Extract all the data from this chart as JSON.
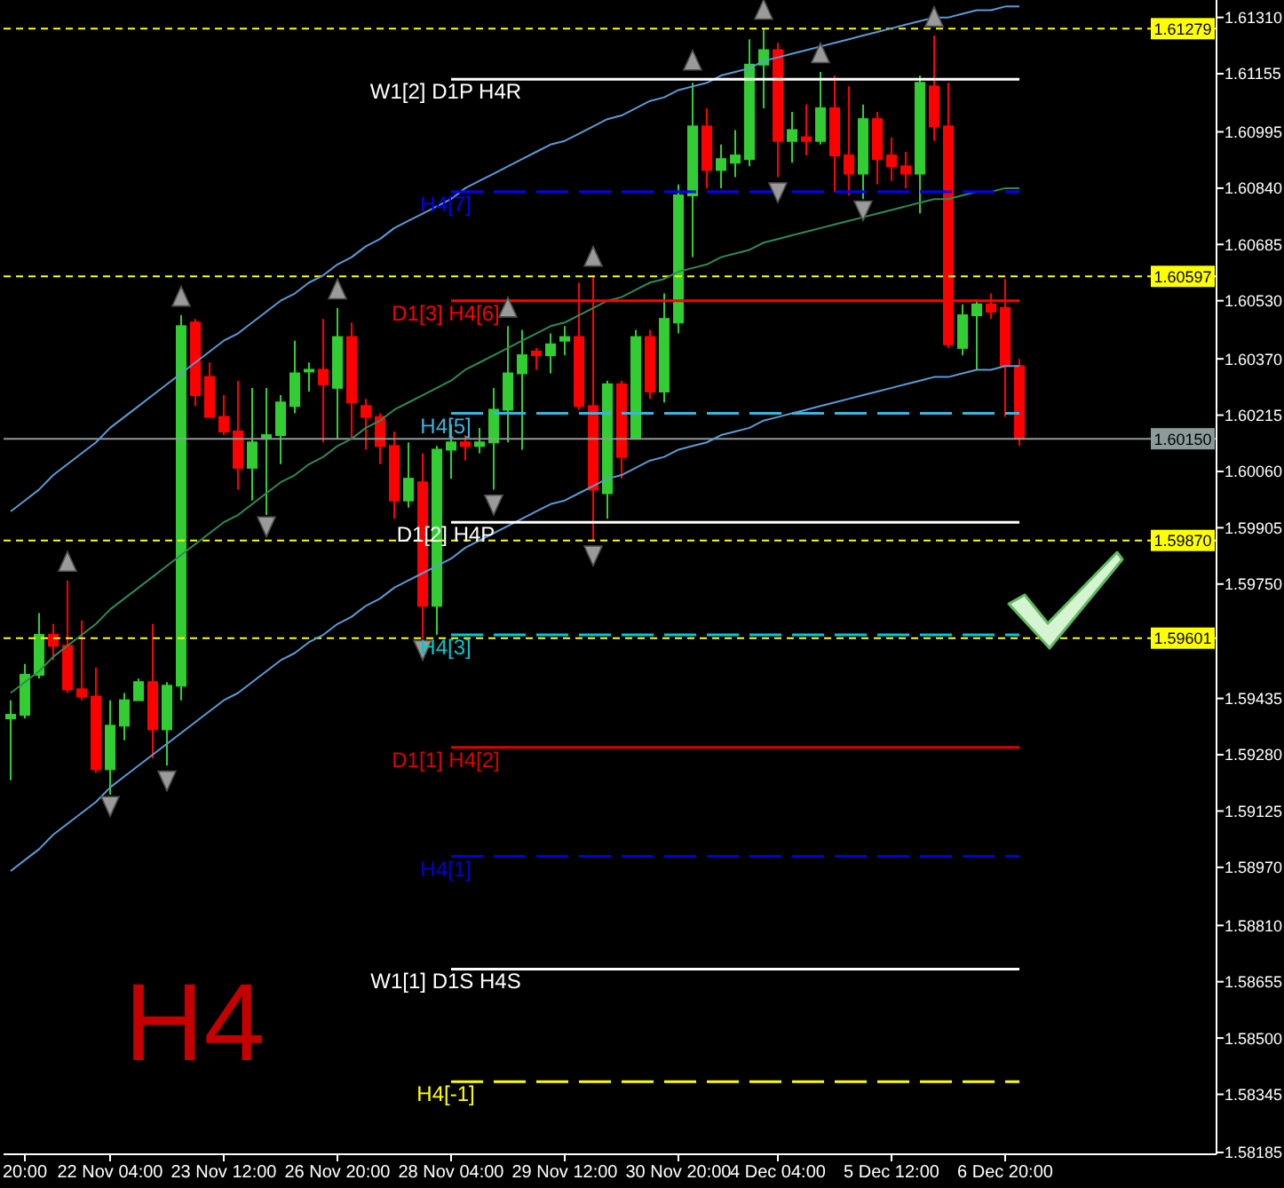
{
  "chart_data": {
    "type": "candlestick",
    "categories": [
      null,
      "20:00",
      null,
      null,
      null,
      null,
      null,
      "22 Nov 04:00",
      null,
      null,
      null,
      null,
      null,
      null,
      null,
      "23 Nov 12:00",
      null,
      null,
      null,
      null,
      null,
      null,
      null,
      "26 Nov 20:00",
      null,
      null,
      null,
      null,
      null,
      null,
      null,
      "28 Nov 04:00",
      null,
      null,
      null,
      null,
      null,
      null,
      null,
      "29 Nov 12:00",
      null,
      null,
      null,
      null,
      null,
      null,
      null,
      "30 Nov 20:00",
      null,
      null,
      null,
      null,
      null,
      null,
      "4 Dec 04:00",
      null,
      null,
      null,
      null,
      null,
      null,
      null,
      "5 Dec 12:00",
      null,
      null,
      null,
      null,
      null,
      null,
      null,
      "6 Dec 20:00",
      null
    ],
    "ohlc": [
      [
        1.5938,
        1.5943,
        1.5921,
        1.5939
      ],
      [
        1.5939,
        1.5953,
        1.5938,
        1.595
      ],
      [
        1.595,
        1.5967,
        1.5949,
        1.5961
      ],
      [
        1.5961,
        1.5964,
        1.5954,
        1.5958
      ],
      [
        1.5958,
        1.5976,
        1.5945,
        1.5946
      ],
      [
        1.5946,
        1.5965,
        1.5943,
        1.5944
      ],
      [
        1.5944,
        1.5952,
        1.5923,
        1.5924
      ],
      [
        1.5924,
        1.5943,
        1.5917,
        1.5936
      ],
      [
        1.5936,
        1.5945,
        1.5932,
        1.5943
      ],
      [
        1.5943,
        1.5949,
        1.5943,
        1.5948
      ],
      [
        1.5948,
        1.5964,
        1.5927,
        1.5935
      ],
      [
        1.5935,
        1.5948,
        1.5925,
        1.5947
      ],
      [
        1.5947,
        1.6049,
        1.5943,
        1.6046
      ],
      [
        1.6047,
        1.6048,
        1.6024,
        1.6027
      ],
      [
        1.6032,
        1.6036,
        1.6021,
        1.6021
      ],
      [
        1.6021,
        1.6027,
        1.6016,
        1.6017
      ],
      [
        1.6017,
        1.6031,
        1.6001,
        1.6007
      ],
      [
        1.6007,
        1.6029,
        1.5998,
        1.6014
      ],
      [
        1.6015,
        1.6029,
        1.5994,
        1.6016
      ],
      [
        1.6016,
        1.6027,
        1.6008,
        1.6025
      ],
      [
        1.6024,
        1.6042,
        1.6022,
        1.6033
      ],
      [
        1.6034,
        1.6036,
        1.6028,
        1.6034
      ],
      [
        1.6034,
        1.6048,
        1.6014,
        1.603
      ],
      [
        1.6029,
        1.6051,
        1.6015,
        1.6043
      ],
      [
        1.6043,
        1.6047,
        1.6015,
        1.6025
      ],
      [
        1.6024,
        1.6026,
        1.6012,
        1.6021
      ],
      [
        1.6021,
        1.6022,
        1.6008,
        1.6013
      ],
      [
        1.6013,
        1.6017,
        1.5993,
        1.5998
      ],
      [
        1.5998,
        1.6014,
        1.5996,
        1.6004
      ],
      [
        1.6003,
        1.6011,
        1.596,
        1.5969
      ],
      [
        1.5969,
        1.6013,
        1.5961,
        1.6012
      ],
      [
        1.6012,
        1.6019,
        1.6004,
        1.6014
      ],
      [
        1.6014,
        1.6016,
        1.6009,
        1.6013
      ],
      [
        1.6013,
        1.6018,
        1.6011,
        1.6014
      ],
      [
        1.6014,
        1.6029,
        1.6001,
        1.6023
      ],
      [
        1.6023,
        1.6046,
        1.6014,
        1.6033
      ],
      [
        1.6033,
        1.6045,
        1.6012,
        1.6038
      ],
      [
        1.6039,
        1.604,
        1.6034,
        1.6038
      ],
      [
        1.6038,
        1.6044,
        1.6033,
        1.6041
      ],
      [
        1.6042,
        1.6046,
        1.6038,
        1.6043
      ],
      [
        1.6043,
        1.6058,
        1.6023,
        1.6024
      ],
      [
        1.6024,
        1.606,
        1.5987,
        1.6001
      ],
      [
        1.6,
        1.6031,
        1.5993,
        1.603
      ],
      [
        1.603,
        1.6031,
        1.6004,
        1.601
      ],
      [
        1.6015,
        1.6045,
        1.6015,
        1.6043
      ],
      [
        1.6043,
        1.6045,
        1.6026,
        1.6028
      ],
      [
        1.6028,
        1.6055,
        1.6025,
        1.6048
      ],
      [
        1.6047,
        1.6085,
        1.6044,
        1.6082
      ],
      [
        1.6082,
        1.6113,
        1.6065,
        1.6101
      ],
      [
        1.6101,
        1.6106,
        1.6084,
        1.6089
      ],
      [
        1.6089,
        1.6096,
        1.6084,
        1.6092
      ],
      [
        1.6091,
        1.61,
        1.6087,
        1.6093
      ],
      [
        1.6092,
        1.6125,
        1.609,
        1.6118
      ],
      [
        1.6118,
        1.6128,
        1.6106,
        1.6122
      ],
      [
        1.6122,
        1.6124,
        1.6087,
        1.6097
      ],
      [
        1.6097,
        1.6105,
        1.6091,
        1.61
      ],
      [
        1.6098,
        1.6107,
        1.6093,
        1.6097
      ],
      [
        1.6097,
        1.6116,
        1.6096,
        1.6106
      ],
      [
        1.6106,
        1.6115,
        1.6083,
        1.6093
      ],
      [
        1.6093,
        1.6112,
        1.6082,
        1.6088
      ],
      [
        1.6088,
        1.6107,
        1.6081,
        1.6103
      ],
      [
        1.6103,
        1.6105,
        1.6085,
        1.6092
      ],
      [
        1.6093,
        1.6098,
        1.6086,
        1.609
      ],
      [
        1.609,
        1.6094,
        1.6084,
        1.6088
      ],
      [
        1.6088,
        1.6115,
        1.6077,
        1.6113
      ],
      [
        1.6112,
        1.6126,
        1.6097,
        1.6101
      ],
      [
        1.6101,
        1.6113,
        1.604,
        1.6041
      ],
      [
        1.604,
        1.6052,
        1.6038,
        1.6049
      ],
      [
        1.6049,
        1.6053,
        1.6034,
        1.6052
      ],
      [
        1.6052,
        1.6055,
        1.6048,
        1.605
      ],
      [
        1.6051,
        1.6059,
        1.6021,
        1.6035
      ],
      [
        1.6035,
        1.6037,
        1.6013,
        1.6015
      ]
    ],
    "colors": [
      "#32cd32",
      "#32cd32",
      "#32cd32",
      "#ff0000",
      "#ff0000",
      "#ff0000",
      "#ff0000",
      "#32cd32",
      "#32cd32",
      "#32cd32",
      "#ff0000",
      "#32cd32",
      "#32cd32",
      "#ff0000",
      "#ff0000",
      "#ff0000",
      "#ff0000",
      "#32cd32",
      "#32cd32",
      "#32cd32",
      "#32cd32",
      "#32cd32",
      "#ff0000",
      "#32cd32",
      "#ff0000",
      "#ff0000",
      "#ff0000",
      "#ff0000",
      "#32cd32",
      "#ff0000",
      "#32cd32",
      "#32cd32",
      "#ff0000",
      "#32cd32",
      "#32cd32",
      "#32cd32",
      "#32cd32",
      "#ff0000",
      "#32cd32",
      "#32cd32",
      "#ff0000",
      "#ff0000",
      "#32cd32",
      "#ff0000",
      "#32cd32",
      "#ff0000",
      "#32cd32",
      "#32cd32",
      "#32cd32",
      "#ff0000",
      "#32cd32",
      "#32cd32",
      "#32cd32",
      "#32cd32",
      "#ff0000",
      "#32cd32",
      "#ff0000",
      "#32cd32",
      "#ff0000",
      "#ff0000",
      "#32cd32",
      "#ff0000",
      "#ff0000",
      "#ff0000",
      "#32cd32",
      "#ff0000",
      "#ff0000",
      "#32cd32",
      "#32cd32",
      "#ff0000",
      "#ff0000",
      "#ff0000"
    ],
    "series": [
      {
        "type": "line",
        "color": "#5b9bd5",
        "values": [
          1.5995,
          1.5998,
          1.6001,
          1.6005,
          1.6008,
          1.6011,
          1.6014,
          1.6018,
          1.6021,
          1.6024,
          1.6027,
          1.603,
          1.6033,
          1.6036,
          1.6039,
          1.6042,
          1.6044,
          1.6047,
          1.605,
          1.6053,
          1.6055,
          1.6058,
          1.606,
          1.6063,
          1.6065,
          1.6068,
          1.607,
          1.6073,
          1.6075,
          1.6077,
          1.6079,
          1.6081,
          1.6084,
          1.6086,
          1.6088,
          1.609,
          1.6092,
          1.6094,
          1.6096,
          1.6097,
          1.6099,
          1.6101,
          1.6103,
          1.6104,
          1.6106,
          1.6108,
          1.6109,
          1.6111,
          1.6112,
          1.6113,
          1.6115,
          1.6116,
          1.6117,
          1.6119,
          1.612,
          1.6121,
          1.6122,
          1.6123,
          1.6124,
          1.6125,
          1.6126,
          1.6127,
          1.6128,
          1.6129,
          1.613,
          1.6131,
          1.6131,
          1.6132,
          1.6133,
          1.6133,
          1.6134,
          1.6134
        ]
      },
      {
        "type": "line",
        "color": "#2e8b57",
        "values": [
          1.5945,
          1.5948,
          1.5951,
          1.5955,
          1.5958,
          1.5961,
          1.5964,
          1.5968,
          1.5971,
          1.5974,
          1.5977,
          1.598,
          1.5983,
          1.5986,
          1.5989,
          1.5992,
          1.5994,
          1.5997,
          1.6,
          1.6003,
          1.6005,
          1.6008,
          1.601,
          1.6013,
          1.6015,
          1.6018,
          1.602,
          1.6023,
          1.6025,
          1.6027,
          1.6029,
          1.6031,
          1.6034,
          1.6036,
          1.6038,
          1.604,
          1.6042,
          1.6044,
          1.6046,
          1.6047,
          1.6049,
          1.6051,
          1.6053,
          1.6054,
          1.6056,
          1.6058,
          1.6059,
          1.6061,
          1.6062,
          1.6063,
          1.6065,
          1.6066,
          1.6067,
          1.6069,
          1.607,
          1.6071,
          1.6072,
          1.6073,
          1.6074,
          1.6075,
          1.6076,
          1.6077,
          1.6078,
          1.6079,
          1.608,
          1.6081,
          1.6081,
          1.6082,
          1.6083,
          1.6083,
          1.6084,
          1.6084
        ]
      },
      {
        "type": "line",
        "color": "#5b9bd5",
        "values": [
          1.5896,
          1.5899,
          1.5902,
          1.5906,
          1.5909,
          1.5912,
          1.5915,
          1.5919,
          1.5922,
          1.5925,
          1.5928,
          1.5931,
          1.5934,
          1.5937,
          1.594,
          1.5943,
          1.5945,
          1.5948,
          1.5951,
          1.5954,
          1.5956,
          1.5959,
          1.5961,
          1.5964,
          1.5966,
          1.5969,
          1.5971,
          1.5974,
          1.5976,
          1.5978,
          1.598,
          1.5982,
          1.5985,
          1.5987,
          1.5989,
          1.5991,
          1.5993,
          1.5995,
          1.5997,
          1.5998,
          1.6,
          1.6002,
          1.6004,
          1.6005,
          1.6007,
          1.6009,
          1.601,
          1.6012,
          1.6013,
          1.6014,
          1.6016,
          1.6017,
          1.6018,
          1.602,
          1.6021,
          1.6022,
          1.6023,
          1.6024,
          1.6025,
          1.6026,
          1.6027,
          1.6028,
          1.6029,
          1.603,
          1.6031,
          1.6032,
          1.6032,
          1.6033,
          1.6034,
          1.6034,
          1.6035,
          1.6035
        ]
      },
      {
        "type": "scatter",
        "color": "#9a9a9a",
        "marker": "triangle",
        "values": [
          null,
          null,
          null,
          null,
          1.5981,
          null,
          null,
          null,
          null,
          null,
          null,
          null,
          1.6054,
          null,
          null,
          null,
          null,
          null,
          null,
          null,
          null,
          null,
          null,
          1.6056,
          null,
          null,
          null,
          null,
          null,
          null,
          null,
          null,
          null,
          null,
          null,
          1.6051,
          null,
          null,
          null,
          null,
          null,
          1.6065,
          null,
          null,
          null,
          null,
          null,
          null,
          1.6119,
          null,
          null,
          null,
          null,
          1.6133,
          null,
          null,
          null,
          1.6121,
          null,
          null,
          null,
          null,
          null,
          null,
          null,
          1.6131,
          null,
          null,
          null,
          null,
          null,
          null
        ]
      },
      {
        "type": "scatter",
        "color": "#9a9a9a",
        "marker": "triangle",
        "values": [
          null,
          null,
          null,
          null,
          null,
          null,
          null,
          1.5914,
          null,
          null,
          null,
          1.5921,
          null,
          null,
          null,
          null,
          null,
          null,
          1.5991,
          null,
          null,
          null,
          null,
          null,
          null,
          null,
          null,
          null,
          null,
          1.5957,
          null,
          null,
          null,
          null,
          1.5997,
          null,
          null,
          null,
          null,
          null,
          null,
          1.5983,
          null,
          null,
          null,
          null,
          null,
          null,
          null,
          null,
          null,
          null,
          null,
          null,
          1.6083,
          null,
          null,
          null,
          null,
          null,
          1.6078,
          null,
          null,
          null,
          null,
          null,
          null,
          null,
          null,
          null,
          null,
          null
        ]
      },
      {
        "type": "line",
        "name": "W1[2] D1P H4R",
        "color": "#ffffff",
        "line_style": "solid",
        "values": [
          null,
          null,
          null,
          null,
          null,
          null,
          null,
          null,
          null,
          null,
          null,
          null,
          null,
          null,
          null,
          null,
          null,
          null,
          null,
          null,
          null,
          null,
          null,
          null,
          null,
          null,
          null,
          null,
          null,
          null,
          null,
          1.6114,
          1.6114,
          1.6114,
          1.6114,
          1.6114,
          1.6114,
          1.6114,
          1.6114,
          1.6114,
          1.6114,
          1.6114,
          1.6114,
          1.6114,
          1.6114,
          1.6114,
          1.6114,
          1.6114,
          1.6114,
          1.6114,
          1.6114,
          1.6114,
          1.6114,
          1.6114,
          1.6114,
          1.6114,
          1.6114,
          1.6114,
          1.6114,
          1.6114,
          1.6114,
          1.6114,
          1.6114,
          1.6114,
          1.6114,
          1.6114,
          1.6114,
          1.6114,
          1.6114,
          1.6114,
          1.6114,
          1.6114
        ]
      },
      {
        "type": "line",
        "name": "H4[7]",
        "color": "#0000ff",
        "line_style": "dashed",
        "values": [
          null,
          null,
          null,
          null,
          null,
          null,
          null,
          null,
          null,
          null,
          null,
          null,
          null,
          null,
          null,
          null,
          null,
          null,
          null,
          null,
          null,
          null,
          null,
          null,
          null,
          null,
          null,
          null,
          null,
          null,
          null,
          1.6083,
          1.6083,
          1.6083,
          1.6083,
          1.6083,
          1.6083,
          1.6083,
          1.6083,
          1.6083,
          1.6083,
          1.6083,
          1.6083,
          1.6083,
          1.6083,
          1.6083,
          1.6083,
          1.6083,
          1.6083,
          1.6083,
          1.6083,
          1.6083,
          1.6083,
          1.6083,
          1.6083,
          1.6083,
          1.6083,
          1.6083,
          1.6083,
          1.6083,
          1.6083,
          1.6083,
          1.6083,
          1.6083,
          1.6083,
          1.6083,
          1.6083,
          1.6083,
          1.6083,
          1.6083,
          1.6083,
          1.6083
        ]
      },
      {
        "type": "line",
        "name": "D1[3] H4[6]",
        "color": "#ff0000",
        "line_style": "solid",
        "values": [
          null,
          null,
          null,
          null,
          null,
          null,
          null,
          null,
          null,
          null,
          null,
          null,
          null,
          null,
          null,
          null,
          null,
          null,
          null,
          null,
          null,
          null,
          null,
          null,
          null,
          null,
          null,
          null,
          null,
          null,
          null,
          1.6053,
          1.6053,
          1.6053,
          1.6053,
          1.6053,
          1.6053,
          1.6053,
          1.6053,
          1.6053,
          1.6053,
          1.6053,
          1.6053,
          1.6053,
          1.6053,
          1.6053,
          1.6053,
          1.6053,
          1.6053,
          1.6053,
          1.6053,
          1.6053,
          1.6053,
          1.6053,
          1.6053,
          1.6053,
          1.6053,
          1.6053,
          1.6053,
          1.6053,
          1.6053,
          1.6053,
          1.6053,
          1.6053,
          1.6053,
          1.6053,
          1.6053,
          1.6053,
          1.6053,
          1.6053,
          1.6053,
          1.6053
        ]
      },
      {
        "type": "line",
        "name": "H4[5]",
        "color": "#3cb4dc",
        "line_style": "dashed",
        "values": [
          null,
          null,
          null,
          null,
          null,
          null,
          null,
          null,
          null,
          null,
          null,
          null,
          null,
          null,
          null,
          null,
          null,
          null,
          null,
          null,
          null,
          null,
          null,
          null,
          null,
          null,
          null,
          null,
          null,
          null,
          null,
          1.6022,
          1.6022,
          1.6022,
          1.6022,
          1.6022,
          1.6022,
          1.6022,
          1.6022,
          1.6022,
          1.6022,
          1.6022,
          1.6022,
          1.6022,
          1.6022,
          1.6022,
          1.6022,
          1.6022,
          1.6022,
          1.6022,
          1.6022,
          1.6022,
          1.6022,
          1.6022,
          1.6022,
          1.6022,
          1.6022,
          1.6022,
          1.6022,
          1.6022,
          1.6022,
          1.6022,
          1.6022,
          1.6022,
          1.6022,
          1.6022,
          1.6022,
          1.6022,
          1.6022,
          1.6022,
          1.6022,
          1.6022
        ]
      },
      {
        "type": "line",
        "name": "D1[2] H4P",
        "color": "#ffffff",
        "line_style": "solid",
        "values": [
          null,
          null,
          null,
          null,
          null,
          null,
          null,
          null,
          null,
          null,
          null,
          null,
          null,
          null,
          null,
          null,
          null,
          null,
          null,
          null,
          null,
          null,
          null,
          null,
          null,
          null,
          null,
          null,
          null,
          null,
          null,
          1.5992,
          1.5992,
          1.5992,
          1.5992,
          1.5992,
          1.5992,
          1.5992,
          1.5992,
          1.5992,
          1.5992,
          1.5992,
          1.5992,
          1.5992,
          1.5992,
          1.5992,
          1.5992,
          1.5992,
          1.5992,
          1.5992,
          1.5992,
          1.5992,
          1.5992,
          1.5992,
          1.5992,
          1.5992,
          1.5992,
          1.5992,
          1.5992,
          1.5992,
          1.5992,
          1.5992,
          1.5992,
          1.5992,
          1.5992,
          1.5992,
          1.5992,
          1.5992,
          1.5992,
          1.5992,
          1.5992,
          1.5992
        ]
      },
      {
        "type": "line",
        "name": "H4[3]",
        "color": "#00c8d2",
        "line_style": "dashed",
        "values": [
          null,
          null,
          null,
          null,
          null,
          null,
          null,
          null,
          null,
          null,
          null,
          null,
          null,
          null,
          null,
          null,
          null,
          null,
          null,
          null,
          null,
          null,
          null,
          null,
          null,
          null,
          null,
          null,
          null,
          null,
          null,
          1.5961,
          1.5961,
          1.5961,
          1.5961,
          1.5961,
          1.5961,
          1.5961,
          1.5961,
          1.5961,
          1.5961,
          1.5961,
          1.5961,
          1.5961,
          1.5961,
          1.5961,
          1.5961,
          1.5961,
          1.5961,
          1.5961,
          1.5961,
          1.5961,
          1.5961,
          1.5961,
          1.5961,
          1.5961,
          1.5961,
          1.5961,
          1.5961,
          1.5961,
          1.5961,
          1.5961,
          1.5961,
          1.5961,
          1.5961,
          1.5961,
          1.5961,
          1.5961,
          1.5961,
          1.5961,
          1.5961,
          1.5961
        ]
      },
      {
        "type": "line",
        "name": "D1[1] H4[2]",
        "color": "#e00000",
        "line_style": "solid",
        "values": [
          null,
          null,
          null,
          null,
          null,
          null,
          null,
          null,
          null,
          null,
          null,
          null,
          null,
          null,
          null,
          null,
          null,
          null,
          null,
          null,
          null,
          null,
          null,
          null,
          null,
          null,
          null,
          null,
          null,
          null,
          null,
          1.593,
          1.593,
          1.593,
          1.593,
          1.593,
          1.593,
          1.593,
          1.593,
          1.593,
          1.593,
          1.593,
          1.593,
          1.593,
          1.593,
          1.593,
          1.593,
          1.593,
          1.593,
          1.593,
          1.593,
          1.593,
          1.593,
          1.593,
          1.593,
          1.593,
          1.593,
          1.593,
          1.593,
          1.593,
          1.593,
          1.593,
          1.593,
          1.593,
          1.593,
          1.593,
          1.593,
          1.593,
          1.593,
          1.593,
          1.593,
          1.593
        ]
      },
      {
        "type": "line",
        "name": "H4[1]",
        "color": "#0000dd",
        "line_style": "dashed",
        "values": [
          null,
          null,
          null,
          null,
          null,
          null,
          null,
          null,
          null,
          null,
          null,
          null,
          null,
          null,
          null,
          null,
          null,
          null,
          null,
          null,
          null,
          null,
          null,
          null,
          null,
          null,
          null,
          null,
          null,
          null,
          null,
          1.59,
          1.59,
          1.59,
          1.59,
          1.59,
          1.59,
          1.59,
          1.59,
          1.59,
          1.59,
          1.59,
          1.59,
          1.59,
          1.59,
          1.59,
          1.59,
          1.59,
          1.59,
          1.59,
          1.59,
          1.59,
          1.59,
          1.59,
          1.59,
          1.59,
          1.59,
          1.59,
          1.59,
          1.59,
          1.59,
          1.59,
          1.59,
          1.59,
          1.59,
          1.59,
          1.59,
          1.59,
          1.59,
          1.59,
          1.59,
          1.59
        ]
      },
      {
        "type": "line",
        "name": "W1[1] D1S H4S",
        "color": "#ffffff",
        "line_style": "solid",
        "values": [
          null,
          null,
          null,
          null,
          null,
          null,
          null,
          null,
          null,
          null,
          null,
          null,
          null,
          null,
          null,
          null,
          null,
          null,
          null,
          null,
          null,
          null,
          null,
          null,
          null,
          null,
          null,
          null,
          null,
          null,
          null,
          1.5869,
          1.5869,
          1.5869,
          1.5869,
          1.5869,
          1.5869,
          1.5869,
          1.5869,
          1.5869,
          1.5869,
          1.5869,
          1.5869,
          1.5869,
          1.5869,
          1.5869,
          1.5869,
          1.5869,
          1.5869,
          1.5869,
          1.5869,
          1.5869,
          1.5869,
          1.5869,
          1.5869,
          1.5869,
          1.5869,
          1.5869,
          1.5869,
          1.5869,
          1.5869,
          1.5869,
          1.5869,
          1.5869,
          1.5869,
          1.5869,
          1.5869,
          1.5869,
          1.5869,
          1.5869,
          1.5869,
          1.5869
        ]
      },
      {
        "type": "line",
        "name": "H4[-1]",
        "color": "#ffff00",
        "line_style": "dashed",
        "values": [
          null,
          null,
          null,
          null,
          null,
          null,
          null,
          null,
          null,
          null,
          null,
          null,
          null,
          null,
          null,
          null,
          null,
          null,
          null,
          null,
          null,
          null,
          null,
          null,
          null,
          null,
          null,
          null,
          null,
          null,
          null,
          1.5838,
          1.5838,
          1.5838,
          1.5838,
          1.5838,
          1.5838,
          1.5838,
          1.5838,
          1.5838,
          1.5838,
          1.5838,
          1.5838,
          1.5838,
          1.5838,
          1.5838,
          1.5838,
          1.5838,
          1.5838,
          1.5838,
          1.5838,
          1.5838,
          1.5838,
          1.5838,
          1.5838,
          1.5838,
          1.5838,
          1.5838,
          1.5838,
          1.5838,
          1.5838,
          1.5838,
          1.5838,
          1.5838,
          1.5838,
          1.5838,
          1.5838,
          1.5838,
          1.5838,
          1.5838,
          1.5838,
          1.5838
        ]
      }
    ],
    "ylim": [
      1.5818,
      1.61358
    ],
    "yticks": [
      {
        "value": 1.6131,
        "label": "1.61310"
      },
      1.61155,
      1.60995,
      {
        "value": 1.6084,
        "label": "1.60840"
      },
      1.60685,
      {
        "value": 1.6053,
        "label": "1.60530"
      },
      {
        "value": 1.6037,
        "label": "1.60370"
      },
      1.60215,
      {
        "value": 1.6006,
        "label": "1.60060"
      },
      1.59905,
      {
        "value": 1.5975,
        "label": "1.59750"
      },
      1.59435,
      {
        "value": 1.5928,
        "label": "1.59280"
      },
      1.59125,
      {
        "value": 1.5897,
        "label": "1.58970"
      },
      {
        "value": 1.5881,
        "label": "1.58810"
      },
      1.58655,
      {
        "value": 1.585,
        "label": "1.58500"
      },
      1.58345,
      1.58185
    ],
    "ref_lines": [
      {
        "axis": "y",
        "value": 1.61279,
        "label": "1.61279",
        "color": "#ffff00",
        "line_style": "dashed"
      },
      {
        "axis": "y",
        "value": 1.60597,
        "label": "1.60597",
        "color": "#ffff00",
        "line_style": "dashed"
      },
      {
        "axis": "y",
        "value": 1.5987,
        "label": "1.59870",
        "color": "#ffff00",
        "line_style": "dashed"
      },
      {
        "axis": "y",
        "value": 1.59601,
        "label": "1.59601",
        "color": "#ffff00",
        "line_style": "dashed"
      },
      {
        "axis": "y",
        "value": 1.6015,
        "label": "1.60150",
        "color": "#8c9a9a",
        "line_style": "solid"
      }
    ],
    "annotations": [
      "H4"
    ]
  }
}
